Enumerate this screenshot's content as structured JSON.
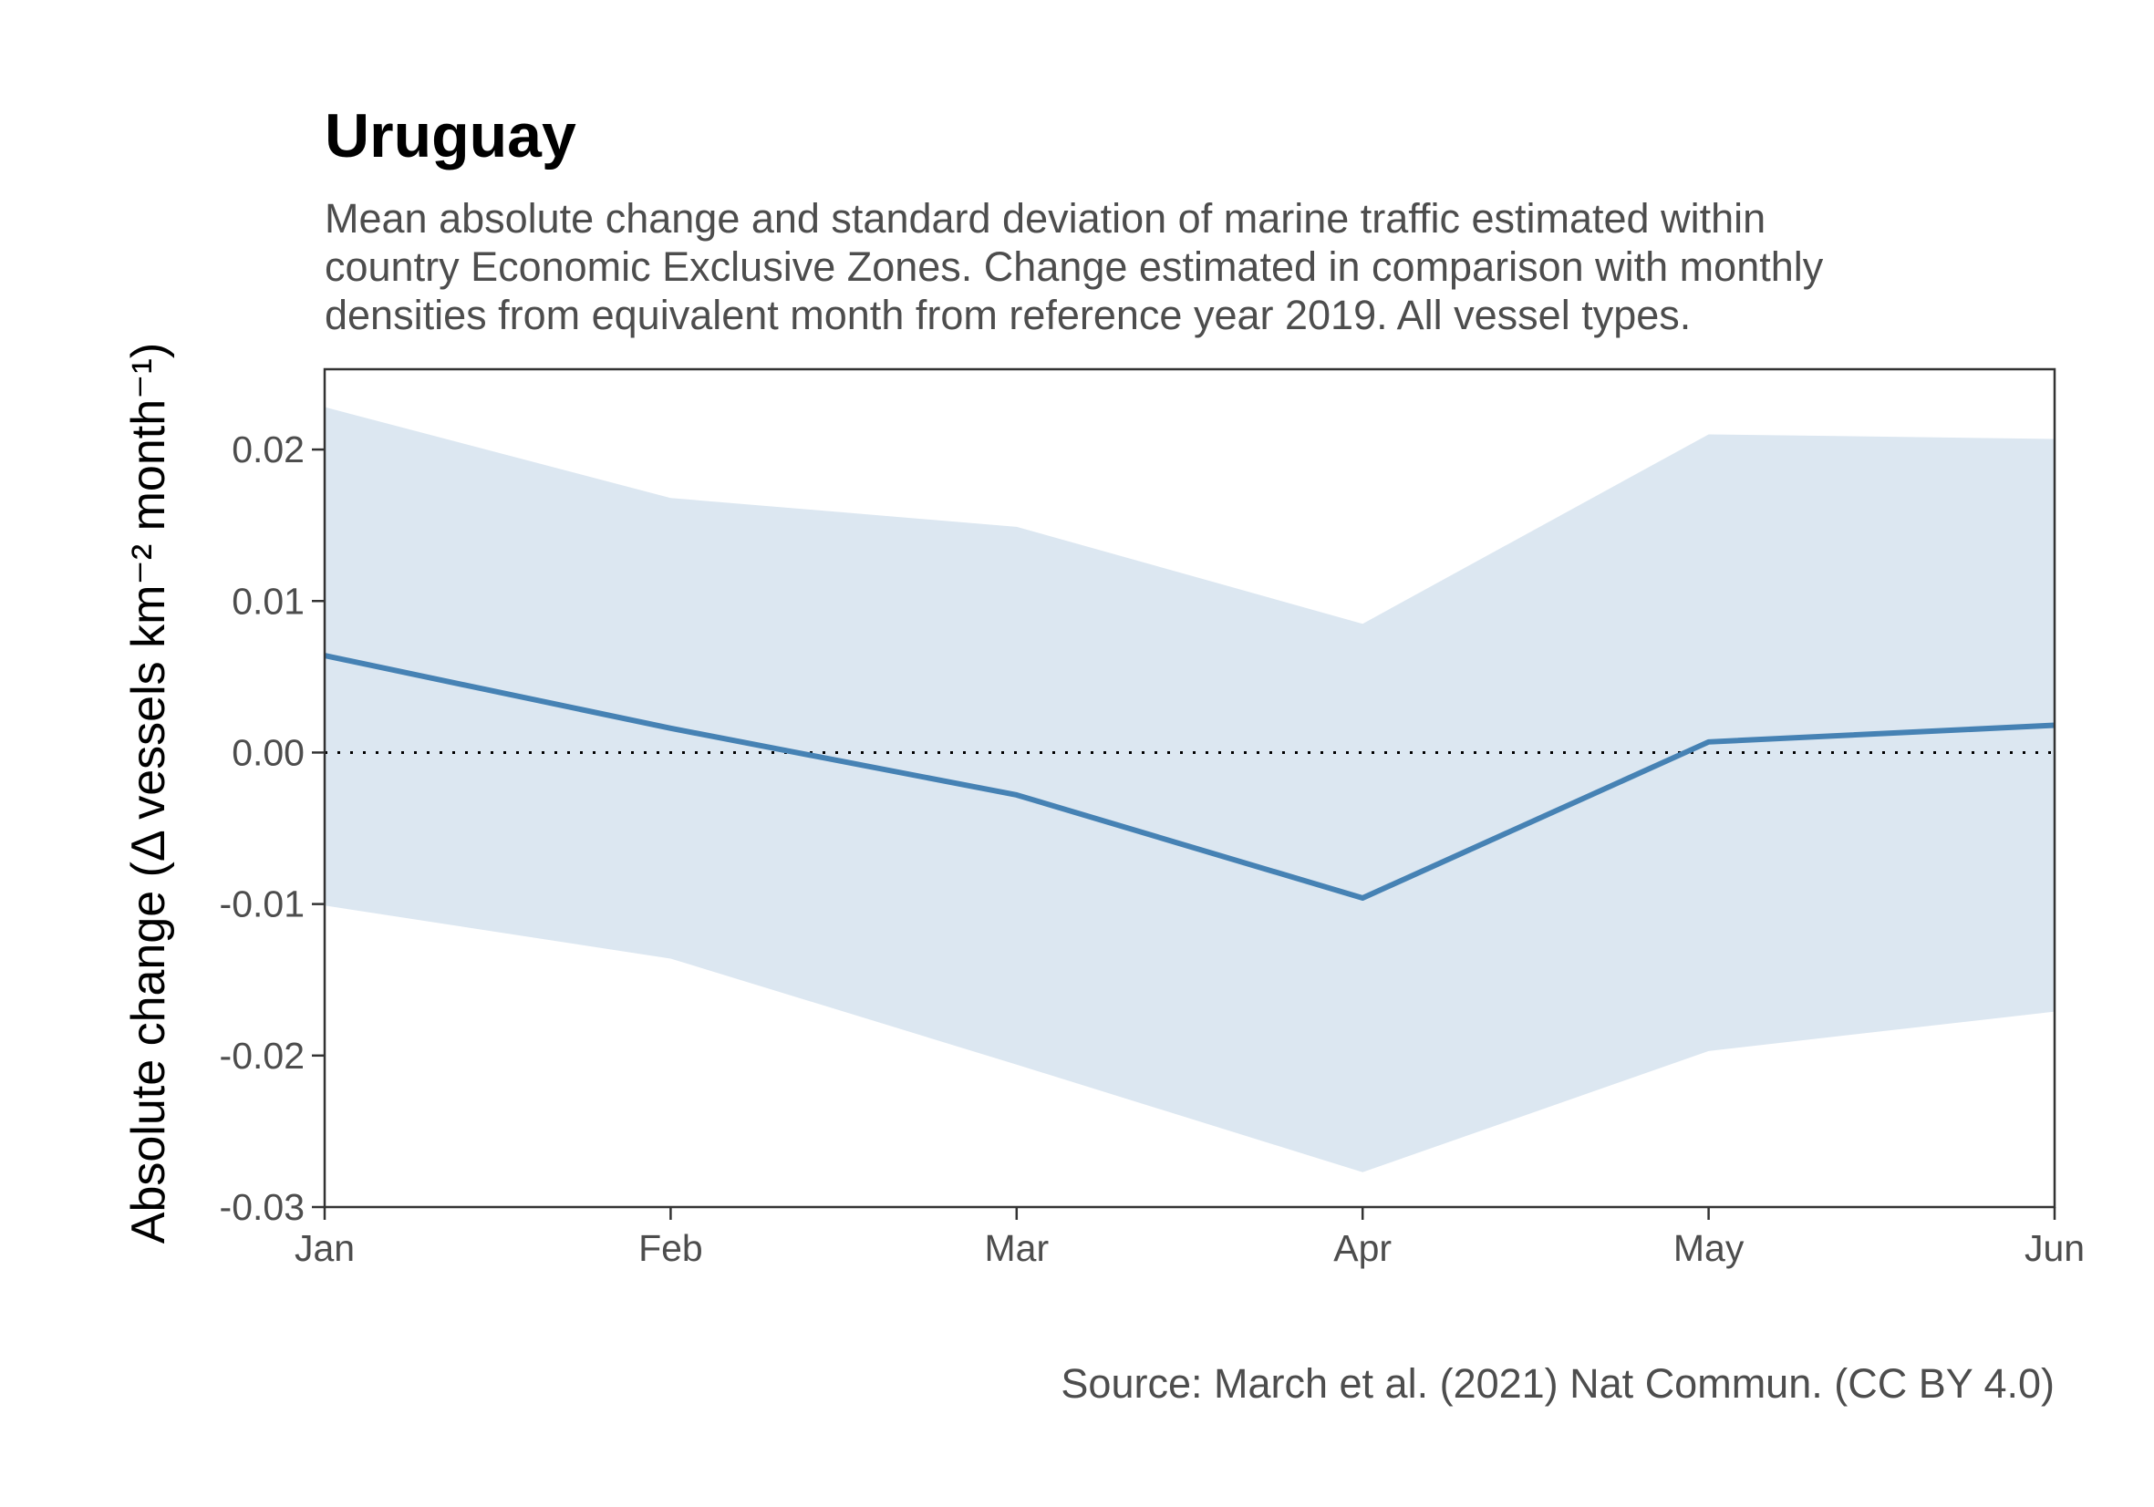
{
  "chart_data": {
    "type": "line",
    "title": "Uruguay",
    "subtitle": [
      "Mean absolute change and standard deviation of marine traffic estimated within",
      "country Economic Exclusive Zones. Change estimated in comparison with monthly",
      "densities from equivalent month from reference year 2019. All vessel types."
    ],
    "ylabel": "Absolute change (Δ vessels km⁻² month⁻¹)",
    "caption": "Source: March et al. (2021) Nat Commun. (CC BY 4.0)",
    "categories": [
      "Jan",
      "Feb",
      "Mar",
      "Apr",
      "May",
      "Jun"
    ],
    "series": [
      {
        "values": [
          0.0064,
          0.0016,
          -0.0028,
          -0.0096,
          0.0007,
          0.0018
        ],
        "upper": [
          0.0228,
          0.0168,
          0.0149,
          0.0085,
          0.021,
          0.0207
        ],
        "lower": [
          -0.0101,
          -0.0136,
          -0.0206,
          -0.0277,
          -0.0197,
          -0.0171
        ]
      }
    ],
    "yticks": [
      "0.02",
      "0.01",
      "0.00",
      "-0.01",
      "-0.02",
      "-0.03"
    ],
    "ytick_values": [
      0.02,
      0.01,
      0.0,
      -0.01,
      -0.02,
      -0.03
    ],
    "ylim": [
      -0.03,
      0.0253
    ],
    "reference_line": 0,
    "grid": false,
    "colors": {
      "line": "#4682b4",
      "ribbon": "#dce7f1",
      "axis": "#333333"
    }
  }
}
